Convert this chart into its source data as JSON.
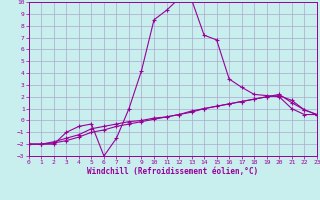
{
  "xlabel": "Windchill (Refroidissement éolien,°C)",
  "background_color": "#c8eeee",
  "grid_color": "#aaaacc",
  "line_color": "#990099",
  "xlim": [
    0,
    23
  ],
  "ylim": [
    -3,
    10
  ],
  "xticks": [
    0,
    1,
    2,
    3,
    4,
    5,
    6,
    7,
    8,
    9,
    10,
    11,
    12,
    13,
    14,
    15,
    16,
    17,
    18,
    19,
    20,
    21,
    22,
    23
  ],
  "yticks": [
    -3,
    -2,
    -1,
    0,
    1,
    2,
    3,
    4,
    5,
    6,
    7,
    8,
    9,
    10
  ],
  "curve1_x": [
    0,
    1,
    2,
    3,
    4,
    5,
    6,
    7,
    8,
    9,
    10,
    11,
    12,
    13,
    14,
    15,
    16,
    17,
    18,
    19,
    20,
    21,
    22,
    23
  ],
  "curve1_y": [
    -2.0,
    -2.0,
    -2.0,
    -1.0,
    -0.5,
    -0.3,
    -3.0,
    -1.5,
    1.0,
    4.2,
    8.5,
    9.3,
    10.3,
    10.2,
    7.2,
    6.8,
    3.5,
    2.8,
    2.2,
    2.1,
    2.0,
    1.0,
    0.5,
    0.5
  ],
  "curve2_x": [
    0,
    1,
    2,
    3,
    4,
    5,
    6,
    7,
    8,
    9,
    10,
    11,
    12,
    13,
    14,
    15,
    16,
    17,
    18,
    19,
    20,
    21,
    22,
    23
  ],
  "curve2_y": [
    -2.0,
    -2.0,
    -1.8,
    -1.5,
    -1.2,
    -0.7,
    -0.5,
    -0.3,
    -0.1,
    0.0,
    0.2,
    0.3,
    0.5,
    0.7,
    1.0,
    1.2,
    1.4,
    1.6,
    1.8,
    2.0,
    2.2,
    1.5,
    0.9,
    0.5
  ],
  "curve3_x": [
    0,
    1,
    2,
    3,
    4,
    5,
    6,
    7,
    8,
    9,
    10,
    11,
    12,
    13,
    14,
    15,
    16,
    17,
    18,
    19,
    20,
    21,
    22,
    23
  ],
  "curve3_y": [
    -2.0,
    -2.0,
    -1.9,
    -1.7,
    -1.4,
    -1.0,
    -0.8,
    -0.5,
    -0.3,
    -0.1,
    0.1,
    0.3,
    0.5,
    0.8,
    1.0,
    1.2,
    1.4,
    1.6,
    1.8,
    2.0,
    2.1,
    1.7,
    0.9,
    0.5
  ],
  "label_fontsize": 4.5,
  "xlabel_fontsize": 5.5,
  "marker_size": 3.0,
  "line_width": 0.8
}
